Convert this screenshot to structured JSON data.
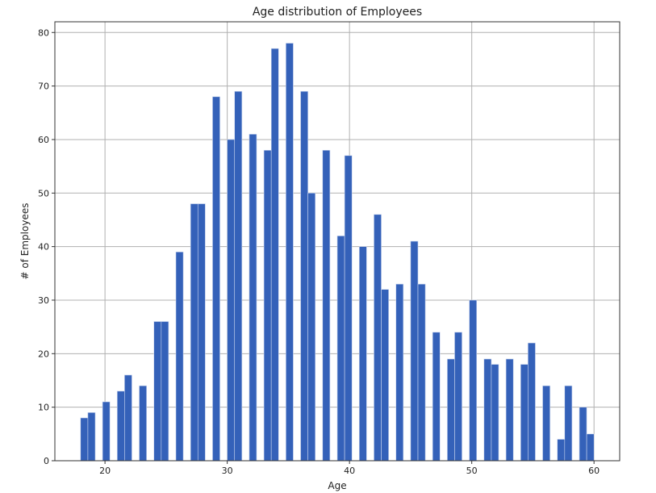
{
  "chart_data": {
    "type": "bar",
    "subtype": "histogram",
    "title": "Age distribution of Employees",
    "xlabel": "Age",
    "ylabel": "# of Employees",
    "xlim": [
      15.9,
      62.1
    ],
    "ylim": [
      0,
      82
    ],
    "xticks": [
      20,
      30,
      40,
      50,
      60
    ],
    "yticks": [
      0,
      10,
      20,
      30,
      40,
      50,
      60,
      70,
      80
    ],
    "grid": true,
    "bins": 70,
    "bin_range": [
      18,
      60
    ],
    "bar_color": "#3461b9",
    "ages": [
      18,
      19,
      20,
      21,
      22,
      23,
      24,
      25,
      26,
      27,
      28,
      29,
      30,
      31,
      32,
      33,
      34,
      35,
      36,
      37,
      38,
      39,
      40,
      41,
      42,
      43,
      44,
      45,
      46,
      47,
      48,
      49,
      50,
      51,
      52,
      53,
      54,
      55,
      56,
      57,
      58,
      59,
      60
    ],
    "counts": [
      8,
      9,
      11,
      13,
      16,
      14,
      26,
      26,
      39,
      48,
      48,
      68,
      60,
      69,
      61,
      58,
      77,
      78,
      69,
      50,
      58,
      42,
      57,
      40,
      46,
      32,
      33,
      41,
      33,
      24,
      19,
      24,
      30,
      19,
      18,
      19,
      18,
      22,
      14,
      4,
      14,
      10,
      5
    ]
  }
}
